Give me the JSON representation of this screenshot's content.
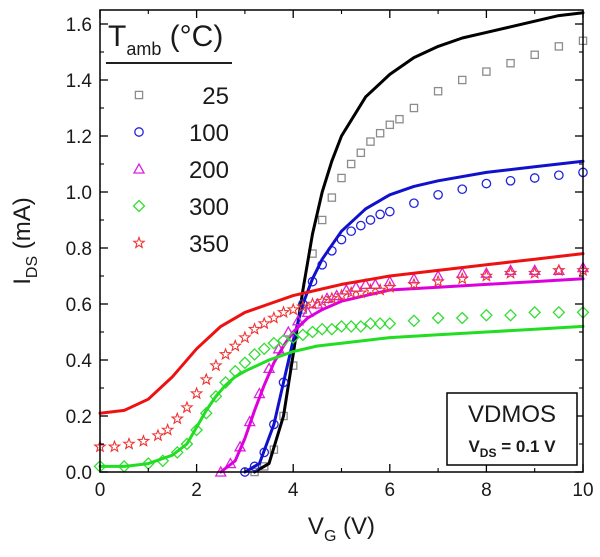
{
  "chart_data": {
    "type": "line",
    "xlabel_main": "V",
    "xlabel_sub": "G",
    "xlabel_unit": " (V)",
    "ylabel_main": "I",
    "ylabel_sub": "DS",
    "ylabel_unit": " (mA)",
    "xlim": [
      0,
      10
    ],
    "ylim": [
      0,
      1.65
    ],
    "xticks": [
      0,
      2,
      4,
      6,
      8,
      10
    ],
    "yticks": [
      0.0,
      0.2,
      0.4,
      0.6,
      0.8,
      1.0,
      1.2,
      1.4,
      1.6
    ],
    "xtick_labels": [
      "0",
      "2",
      "4",
      "6",
      "8",
      "10"
    ],
    "ytick_labels": [
      "0.0",
      "0.2",
      "0.4",
      "0.6",
      "0.8",
      "1.0",
      "1.2",
      "1.4",
      "1.6"
    ],
    "legend": {
      "title_main": "T",
      "title_sub": "amb",
      "title_unit": " (°C)",
      "placement": "top-left"
    },
    "annotation": {
      "title": "VDMOS",
      "sub_main": "V",
      "sub_sub": "DS",
      "sub_value": " = 0.1 V",
      "placement": "bottom-right"
    },
    "series": [
      {
        "name": "25",
        "color": "#8c8c8c",
        "line_color": "#000000",
        "marker": "square",
        "measured": [
          [
            3.2,
            0.0
          ],
          [
            3.4,
            0.02
          ],
          [
            3.6,
            0.08
          ],
          [
            3.8,
            0.2
          ],
          [
            4.0,
            0.38
          ],
          [
            4.2,
            0.58
          ],
          [
            4.4,
            0.78
          ],
          [
            4.6,
            0.9
          ],
          [
            4.8,
            0.98
          ],
          [
            5.0,
            1.05
          ],
          [
            5.2,
            1.1
          ],
          [
            5.4,
            1.14
          ],
          [
            5.6,
            1.18
          ],
          [
            5.8,
            1.21
          ],
          [
            6.0,
            1.24
          ],
          [
            6.2,
            1.26
          ],
          [
            6.5,
            1.3
          ],
          [
            7.0,
            1.36
          ],
          [
            7.5,
            1.4
          ],
          [
            8.0,
            1.43
          ],
          [
            8.5,
            1.46
          ],
          [
            9.0,
            1.49
          ],
          [
            9.5,
            1.52
          ],
          [
            10.0,
            1.54
          ]
        ],
        "model": [
          [
            3.2,
            0.0
          ],
          [
            3.5,
            0.03
          ],
          [
            3.8,
            0.2
          ],
          [
            4.0,
            0.42
          ],
          [
            4.2,
            0.65
          ],
          [
            4.4,
            0.85
          ],
          [
            4.6,
            1.0
          ],
          [
            4.8,
            1.11
          ],
          [
            5.0,
            1.2
          ],
          [
            5.5,
            1.34
          ],
          [
            6.0,
            1.42
          ],
          [
            6.5,
            1.48
          ],
          [
            7.0,
            1.52
          ],
          [
            7.5,
            1.55
          ],
          [
            8.0,
            1.57
          ],
          [
            8.5,
            1.59
          ],
          [
            9.0,
            1.61
          ],
          [
            9.5,
            1.63
          ],
          [
            10.0,
            1.64
          ]
        ]
      },
      {
        "name": "100",
        "color": "#2222dd",
        "line_color": "#1111cc",
        "marker": "circle",
        "measured": [
          [
            3.0,
            0.0
          ],
          [
            3.2,
            0.02
          ],
          [
            3.4,
            0.07
          ],
          [
            3.6,
            0.17
          ],
          [
            3.8,
            0.32
          ],
          [
            4.0,
            0.48
          ],
          [
            4.2,
            0.6
          ],
          [
            4.4,
            0.68
          ],
          [
            4.6,
            0.74
          ],
          [
            4.8,
            0.79
          ],
          [
            5.0,
            0.83
          ],
          [
            5.2,
            0.86
          ],
          [
            5.4,
            0.88
          ],
          [
            5.6,
            0.9
          ],
          [
            5.8,
            0.92
          ],
          [
            6.0,
            0.93
          ],
          [
            6.5,
            0.96
          ],
          [
            7.0,
            0.99
          ],
          [
            7.5,
            1.01
          ],
          [
            8.0,
            1.03
          ],
          [
            8.5,
            1.04
          ],
          [
            9.0,
            1.05
          ],
          [
            9.5,
            1.06
          ],
          [
            10.0,
            1.07
          ]
        ],
        "model": [
          [
            3.0,
            0.0
          ],
          [
            3.3,
            0.03
          ],
          [
            3.6,
            0.17
          ],
          [
            3.8,
            0.32
          ],
          [
            4.0,
            0.47
          ],
          [
            4.2,
            0.6
          ],
          [
            4.4,
            0.69
          ],
          [
            4.6,
            0.76
          ],
          [
            4.8,
            0.81
          ],
          [
            5.0,
            0.86
          ],
          [
            5.5,
            0.94
          ],
          [
            6.0,
            0.99
          ],
          [
            6.5,
            1.02
          ],
          [
            7.0,
            1.04
          ],
          [
            8.0,
            1.07
          ],
          [
            9.0,
            1.09
          ],
          [
            10.0,
            1.11
          ]
        ]
      },
      {
        "name": "200",
        "color": "#dd22dd",
        "line_color": "#dd00dd",
        "marker": "triangle",
        "measured": [
          [
            2.5,
            0.0
          ],
          [
            2.7,
            0.03
          ],
          [
            2.9,
            0.09
          ],
          [
            3.1,
            0.18
          ],
          [
            3.3,
            0.28
          ],
          [
            3.5,
            0.37
          ],
          [
            3.7,
            0.44
          ],
          [
            3.9,
            0.5
          ],
          [
            4.1,
            0.54
          ],
          [
            4.3,
            0.57
          ],
          [
            4.5,
            0.6
          ],
          [
            4.7,
            0.62
          ],
          [
            4.9,
            0.63
          ],
          [
            5.1,
            0.65
          ],
          [
            5.3,
            0.66
          ],
          [
            5.5,
            0.67
          ],
          [
            5.7,
            0.67
          ],
          [
            6.0,
            0.68
          ],
          [
            6.5,
            0.69
          ],
          [
            7.0,
            0.7
          ],
          [
            7.5,
            0.71
          ],
          [
            8.0,
            0.71
          ],
          [
            8.5,
            0.72
          ],
          [
            9.0,
            0.72
          ],
          [
            9.5,
            0.72
          ],
          [
            10.0,
            0.73
          ]
        ],
        "model": [
          [
            2.5,
            0.0
          ],
          [
            2.8,
            0.04
          ],
          [
            3.0,
            0.12
          ],
          [
            3.2,
            0.22
          ],
          [
            3.4,
            0.31
          ],
          [
            3.6,
            0.39
          ],
          [
            3.8,
            0.45
          ],
          [
            4.0,
            0.5
          ],
          [
            4.3,
            0.55
          ],
          [
            4.6,
            0.58
          ],
          [
            5.0,
            0.61
          ],
          [
            5.5,
            0.63
          ],
          [
            6.0,
            0.65
          ],
          [
            7.0,
            0.66
          ],
          [
            8.0,
            0.67
          ],
          [
            9.0,
            0.68
          ],
          [
            10.0,
            0.69
          ]
        ]
      },
      {
        "name": "300",
        "color": "#33dd33",
        "line_color": "#22dd22",
        "marker": "diamond",
        "measured": [
          [
            0.0,
            0.02
          ],
          [
            0.5,
            0.02
          ],
          [
            1.0,
            0.03
          ],
          [
            1.3,
            0.04
          ],
          [
            1.6,
            0.07
          ],
          [
            1.8,
            0.1
          ],
          [
            2.0,
            0.15
          ],
          [
            2.2,
            0.21
          ],
          [
            2.4,
            0.27
          ],
          [
            2.6,
            0.32
          ],
          [
            2.8,
            0.36
          ],
          [
            3.0,
            0.39
          ],
          [
            3.2,
            0.42
          ],
          [
            3.4,
            0.44
          ],
          [
            3.6,
            0.46
          ],
          [
            3.8,
            0.47
          ],
          [
            4.0,
            0.48
          ],
          [
            4.2,
            0.49
          ],
          [
            4.4,
            0.5
          ],
          [
            4.6,
            0.51
          ],
          [
            4.8,
            0.51
          ],
          [
            5.0,
            0.52
          ],
          [
            5.2,
            0.52
          ],
          [
            5.4,
            0.52
          ],
          [
            5.6,
            0.53
          ],
          [
            5.8,
            0.53
          ],
          [
            6.0,
            0.53
          ],
          [
            6.5,
            0.54
          ],
          [
            7.0,
            0.55
          ],
          [
            7.5,
            0.55
          ],
          [
            8.0,
            0.56
          ],
          [
            8.5,
            0.56
          ],
          [
            9.0,
            0.57
          ],
          [
            9.5,
            0.57
          ],
          [
            10.0,
            0.57
          ]
        ],
        "model": [
          [
            0.0,
            0.02
          ],
          [
            0.5,
            0.02
          ],
          [
            1.0,
            0.03
          ],
          [
            1.5,
            0.06
          ],
          [
            1.8,
            0.1
          ],
          [
            2.0,
            0.16
          ],
          [
            2.2,
            0.22
          ],
          [
            2.4,
            0.27
          ],
          [
            2.6,
            0.31
          ],
          [
            2.8,
            0.34
          ],
          [
            3.0,
            0.36
          ],
          [
            3.5,
            0.4
          ],
          [
            4.0,
            0.43
          ],
          [
            4.5,
            0.45
          ],
          [
            5.0,
            0.46
          ],
          [
            6.0,
            0.48
          ],
          [
            7.0,
            0.49
          ],
          [
            8.0,
            0.5
          ],
          [
            9.0,
            0.51
          ],
          [
            10.0,
            0.52
          ]
        ]
      },
      {
        "name": "350",
        "color": "#ee3333",
        "line_color": "#ee1111",
        "marker": "star",
        "measured": [
          [
            0.0,
            0.09
          ],
          [
            0.3,
            0.09
          ],
          [
            0.6,
            0.1
          ],
          [
            0.9,
            0.11
          ],
          [
            1.2,
            0.13
          ],
          [
            1.4,
            0.15
          ],
          [
            1.6,
            0.19
          ],
          [
            1.8,
            0.23
          ],
          [
            2.0,
            0.28
          ],
          [
            2.2,
            0.33
          ],
          [
            2.4,
            0.38
          ],
          [
            2.6,
            0.42
          ],
          [
            2.8,
            0.45
          ],
          [
            3.0,
            0.48
          ],
          [
            3.2,
            0.51
          ],
          [
            3.4,
            0.53
          ],
          [
            3.6,
            0.55
          ],
          [
            3.8,
            0.57
          ],
          [
            4.0,
            0.58
          ],
          [
            4.2,
            0.59
          ],
          [
            4.4,
            0.6
          ],
          [
            4.6,
            0.61
          ],
          [
            4.8,
            0.62
          ],
          [
            5.0,
            0.63
          ],
          [
            5.2,
            0.64
          ],
          [
            5.4,
            0.64
          ],
          [
            5.6,
            0.65
          ],
          [
            5.8,
            0.65
          ],
          [
            6.0,
            0.66
          ],
          [
            6.5,
            0.67
          ],
          [
            7.0,
            0.68
          ],
          [
            7.5,
            0.69
          ],
          [
            8.0,
            0.7
          ],
          [
            8.5,
            0.71
          ],
          [
            9.0,
            0.71
          ],
          [
            9.5,
            0.72
          ],
          [
            10.0,
            0.72
          ]
        ],
        "model": [
          [
            0.0,
            0.21
          ],
          [
            0.5,
            0.22
          ],
          [
            1.0,
            0.26
          ],
          [
            1.5,
            0.34
          ],
          [
            2.0,
            0.44
          ],
          [
            2.5,
            0.52
          ],
          [
            3.0,
            0.57
          ],
          [
            3.5,
            0.6
          ],
          [
            4.0,
            0.63
          ],
          [
            4.5,
            0.65
          ],
          [
            5.0,
            0.67
          ],
          [
            6.0,
            0.7
          ],
          [
            7.0,
            0.72
          ],
          [
            8.0,
            0.74
          ],
          [
            9.0,
            0.76
          ],
          [
            10.0,
            0.78
          ]
        ]
      }
    ]
  }
}
